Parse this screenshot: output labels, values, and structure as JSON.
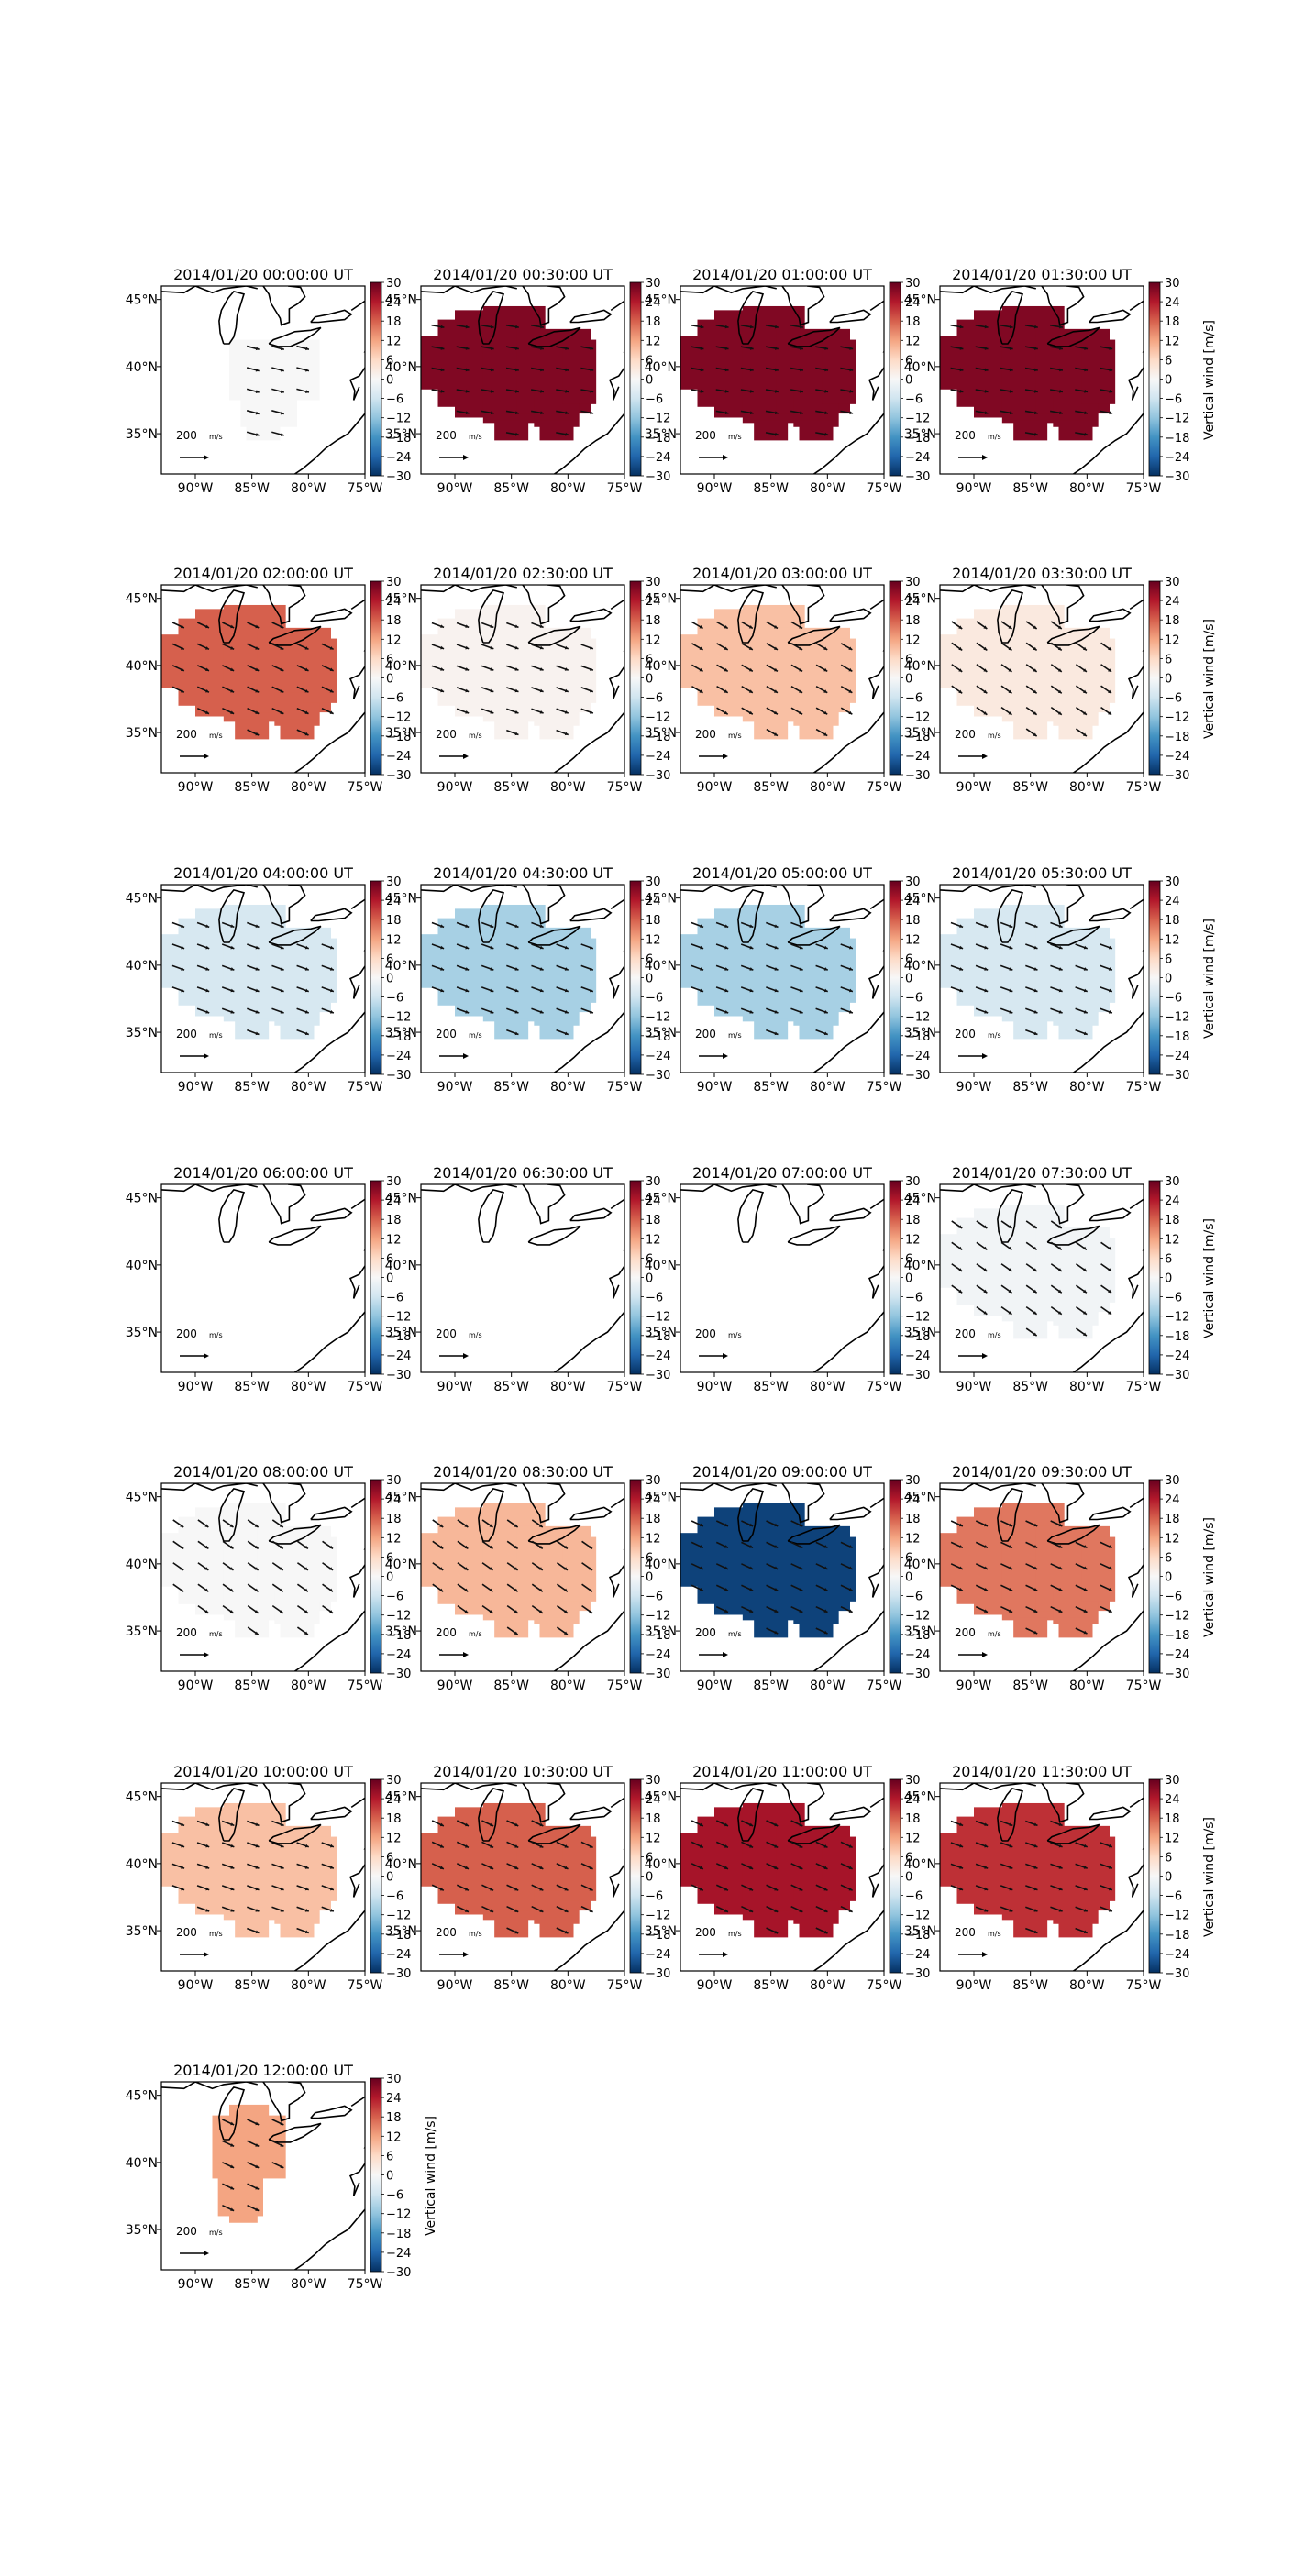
{
  "figure": {
    "date": "2014/01/20",
    "time_suffix": "UT",
    "colorbar_label": "Vertical wind [m/s]",
    "vector_reference_label": "200 m/s",
    "colorbar_ticks": [
      "30",
      "24",
      "18",
      "12",
      "6",
      "0",
      "−6",
      "−12",
      "−18",
      "−24",
      "−30"
    ],
    "lon_tick_labels": [
      "90°W",
      "85°W",
      "80°W",
      "75°W"
    ],
    "lat_tick_labels": [
      "45°N",
      "40°N",
      "35°N"
    ],
    "colors": {
      "max": "#67001f",
      "mid": "#f7f7f7",
      "min": "#053061"
    }
  },
  "chart_data": {
    "type": "heatmap",
    "description_fields": [
      "time",
      "vertical_wind_m_s",
      "coverage",
      "vectors"
    ],
    "colorbar": {
      "range": [
        -30,
        30
      ],
      "colormap": "RdBu_r",
      "label": "Vertical wind [m/s]",
      "ticks": [
        30,
        24,
        18,
        12,
        6,
        0,
        -6,
        -12,
        -18,
        -24,
        -30
      ]
    },
    "xaxis": {
      "range": [
        -93,
        -75
      ],
      "ticks": [
        -90,
        -85,
        -80,
        -75
      ],
      "tick_labels": [
        "90°W",
        "85°W",
        "80°W",
        "75°W"
      ]
    },
    "yaxis": {
      "range": [
        32,
        46
      ],
      "ticks": [
        45,
        40,
        35
      ],
      "tick_labels": [
        "45°N",
        "40°N",
        "35°N"
      ]
    },
    "panels": [
      {
        "title": "2014/01/20 00:00:00 UT",
        "time": "00:00:00",
        "value": 0,
        "coverage": "center",
        "vectors": true,
        "vector_angle": 15
      },
      {
        "title": "2014/01/20 00:30:00 UT",
        "time": "00:30:00",
        "value": 28,
        "coverage": "full",
        "vectors": true,
        "vector_angle": 10
      },
      {
        "title": "2014/01/20 01:00:00 UT",
        "time": "01:00:00",
        "value": 28,
        "coverage": "full",
        "vectors": true,
        "vector_angle": 10
      },
      {
        "title": "2014/01/20 01:30:00 UT",
        "time": "01:30:00",
        "value": 28,
        "coverage": "full",
        "vectors": true,
        "vector_angle": 10
      },
      {
        "title": "2014/01/20 02:00:00 UT",
        "time": "02:00:00",
        "value": 18,
        "coverage": "full",
        "vectors": true,
        "vector_angle": 25
      },
      {
        "title": "2014/01/20 02:30:00 UT",
        "time": "02:30:00",
        "value": 1,
        "coverage": "full",
        "vectors": true,
        "vector_angle": 20
      },
      {
        "title": "2014/01/20 03:00:00 UT",
        "time": "03:00:00",
        "value": 9,
        "coverage": "full",
        "vectors": true,
        "vector_angle": 30
      },
      {
        "title": "2014/01/20 03:30:00 UT",
        "time": "03:30:00",
        "value": 3,
        "coverage": "full",
        "vectors": true,
        "vector_angle": 35
      },
      {
        "title": "2014/01/20 04:00:00 UT",
        "time": "04:00:00",
        "value": -5,
        "coverage": "full",
        "vectors": true,
        "vector_angle": 20
      },
      {
        "title": "2014/01/20 04:30:00 UT",
        "time": "04:30:00",
        "value": -10,
        "coverage": "full",
        "vectors": true,
        "vector_angle": 20
      },
      {
        "title": "2014/01/20 05:00:00 UT",
        "time": "05:00:00",
        "value": -10,
        "coverage": "full",
        "vectors": true,
        "vector_angle": 20
      },
      {
        "title": "2014/01/20 05:30:00 UT",
        "time": "05:30:00",
        "value": -5,
        "coverage": "full",
        "vectors": true,
        "vector_angle": 20
      },
      {
        "title": "2014/01/20 06:00:00 UT",
        "time": "06:00:00",
        "value": null,
        "coverage": "none",
        "vectors": false,
        "vector_angle": 0
      },
      {
        "title": "2014/01/20 06:30:00 UT",
        "time": "06:30:00",
        "value": null,
        "coverage": "none",
        "vectors": false,
        "vector_angle": 0
      },
      {
        "title": "2014/01/20 07:00:00 UT",
        "time": "07:00:00",
        "value": null,
        "coverage": "none",
        "vectors": false,
        "vector_angle": 0
      },
      {
        "title": "2014/01/20 07:30:00 UT",
        "time": "07:30:00",
        "value": -1,
        "coverage": "full",
        "vectors": true,
        "vector_angle": 35
      },
      {
        "title": "2014/01/20 08:00:00 UT",
        "time": "08:00:00",
        "value": 0,
        "coverage": "full",
        "vectors": true,
        "vector_angle": 35
      },
      {
        "title": "2014/01/20 08:30:00 UT",
        "time": "08:30:00",
        "value": 10,
        "coverage": "full",
        "vectors": true,
        "vector_angle": 35
      },
      {
        "title": "2014/01/20 09:00:00 UT",
        "time": "09:00:00",
        "value": -28,
        "coverage": "full",
        "vectors": true,
        "vector_angle": 25
      },
      {
        "title": "2014/01/20 09:30:00 UT",
        "time": "09:30:00",
        "value": 16,
        "coverage": "full",
        "vectors": true,
        "vector_angle": 25
      },
      {
        "title": "2014/01/20 10:00:00 UT",
        "time": "10:00:00",
        "value": 9,
        "coverage": "full",
        "vectors": true,
        "vector_angle": 20
      },
      {
        "title": "2014/01/20 10:30:00 UT",
        "time": "10:30:00",
        "value": 18,
        "coverage": "full",
        "vectors": true,
        "vector_angle": 25
      },
      {
        "title": "2014/01/20 11:00:00 UT",
        "time": "11:00:00",
        "value": 25,
        "coverage": "full",
        "vectors": true,
        "vector_angle": 25
      },
      {
        "title": "2014/01/20 11:30:00 UT",
        "time": "11:30:00",
        "value": 22,
        "coverage": "full",
        "vectors": true,
        "vector_angle": 20
      },
      {
        "title": "2014/01/20 12:00:00 UT",
        "time": "12:00:00",
        "value": 12,
        "coverage": "west",
        "vectors": true,
        "vector_angle": 25
      }
    ]
  }
}
